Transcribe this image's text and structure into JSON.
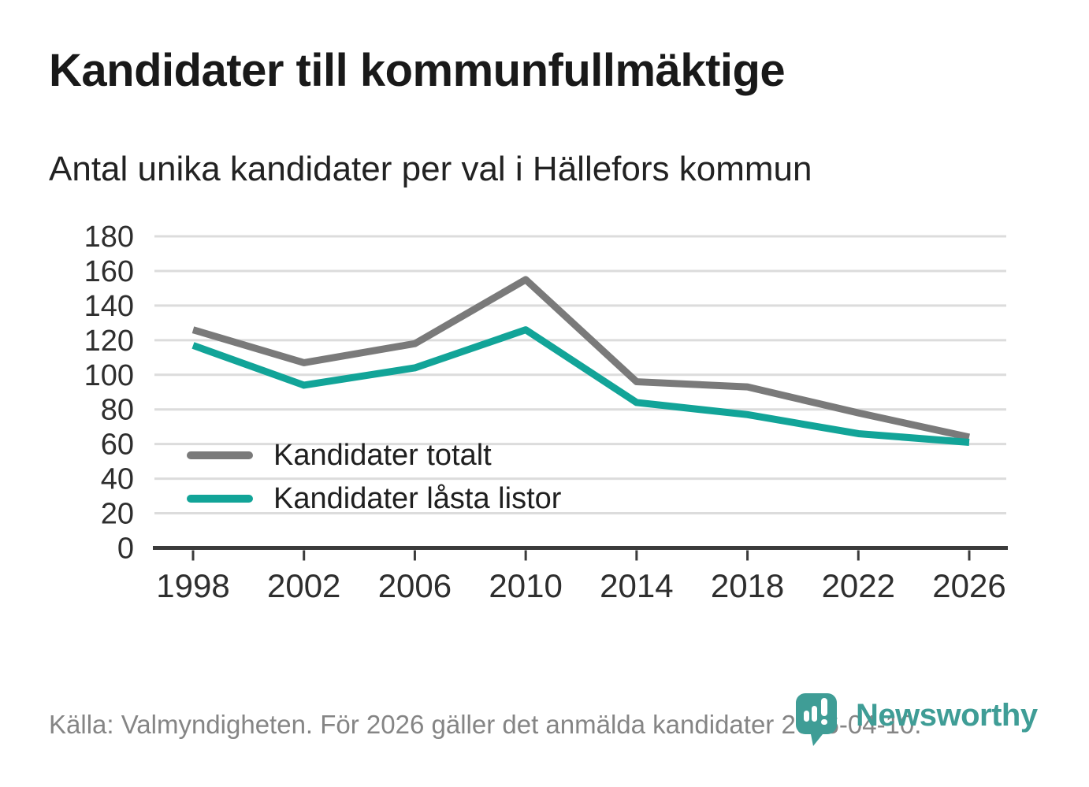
{
  "title": "Kandidater till kommunfullmäktige",
  "subtitle": "Antal unika kandidater per val i Hällefors kommun",
  "footer": {
    "source_text": "Källa: Valmyndigheten. För 2026 gäller det anmälda kandidater 2026-04-10."
  },
  "branding": {
    "logo_text": "Newsworthy",
    "logo_color": "#3f9d96",
    "logo_icon": "bar-chart-pin-icon"
  },
  "chart_data": {
    "type": "line",
    "title": "Kandidater till kommunfullmäktige",
    "subtitle": "Antal unika kandidater per val i Hällefors kommun",
    "x": [
      "1998",
      "2002",
      "2006",
      "2010",
      "2014",
      "2018",
      "2022",
      "2026"
    ],
    "series": [
      {
        "name": "Kandidater totalt",
        "color": "#7a7a7a",
        "values": [
          126,
          107,
          118,
          155,
          96,
          93,
          78,
          64
        ]
      },
      {
        "name": "Kandidater låsta listor",
        "color": "#12a498",
        "values": [
          117,
          94,
          104,
          126,
          84,
          77,
          66,
          61
        ]
      }
    ],
    "xlabel": "",
    "ylabel": "",
    "ylim": [
      0,
      180
    ],
    "ytick_step": 20,
    "grid": true,
    "grid_color": "#dcdcdc",
    "axis_color": "#3b3b3b",
    "tick_label_color": "#2e2e2e",
    "legend_position": "inside-bottom-left"
  }
}
